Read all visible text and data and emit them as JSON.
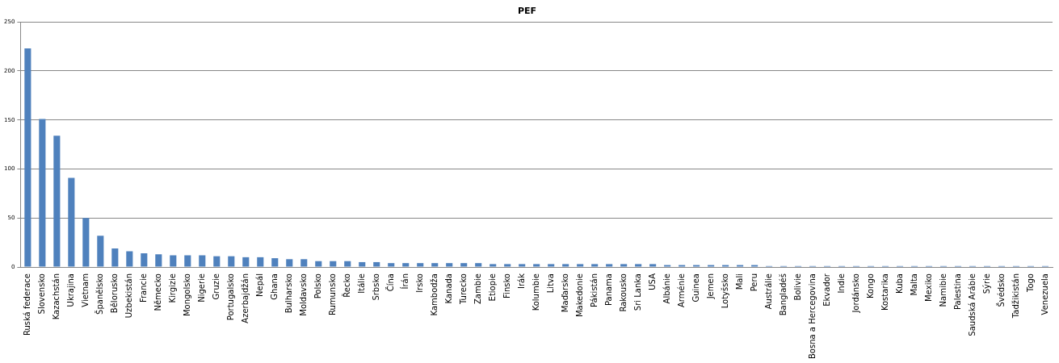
{
  "chart_data": {
    "type": "bar",
    "title": "PEF",
    "categories": [
      "Ruská federace",
      "Slovensko",
      "Kazachstán",
      "Ukrajina",
      "Vietnam",
      "Španělsko",
      "Bělorusko",
      "Uzbekistán",
      "Francie",
      "Německo",
      "Kirgizie",
      "Mongolsko",
      "Nigerie",
      "Gruzie",
      "Portugalsko",
      "Azerbajdžán",
      "Nepál",
      "Ghana",
      "Bulharsko",
      "Moldavsko",
      "Polsko",
      "Rumunsko",
      "Řecko",
      "Itálie",
      "Srbsko",
      "Čína",
      "Írán",
      "Irsko",
      "Kambodža",
      "Kanada",
      "Turecko",
      "Zambie",
      "Etiopie",
      "Finsko",
      "Irák",
      "Kolumbie",
      "Litva",
      "Maďarsko",
      "Makedonie",
      "Pákistán",
      "Panama",
      "Rakousko",
      "Sri Lanka",
      "USA",
      "Albánie",
      "Arménie",
      "Guinea",
      "Jemen",
      "Lotyšsko",
      "Mali",
      "Peru",
      "Austrálie",
      "Bangladéš",
      "Bolivie",
      "Bosna a Hercegovina",
      "Ekvador",
      "Indie",
      "Jordánsko",
      "Kongo",
      "Kostarika",
      "Kuba",
      "Malta",
      "Mexiko",
      "Namibie",
      "Palestina",
      "Saudská Arábie",
      "Sýrie",
      "Švédsko",
      "Tadžikistán",
      "Togo",
      "Venezuela"
    ],
    "values": [
      223,
      151,
      134,
      91,
      50,
      32,
      19,
      16,
      14,
      13,
      12,
      12,
      12,
      11,
      11,
      10,
      10,
      9,
      8,
      8,
      6,
      6,
      6,
      5,
      5,
      4,
      4,
      4,
      4,
      4,
      4,
      4,
      3,
      3,
      3,
      3,
      3,
      3,
      3,
      3,
      3,
      3,
      3,
      3,
      2,
      2,
      2,
      2,
      2,
      2,
      2,
      1,
      1,
      1,
      1,
      1,
      1,
      1,
      1,
      1,
      1,
      1,
      1,
      1,
      1,
      1,
      1,
      1,
      1,
      1,
      1
    ],
    "color": "#4f81bd",
    "ylim": [
      0,
      250
    ],
    "yticks": [
      0,
      50,
      100,
      150,
      200,
      250
    ],
    "grid": "y",
    "legend": false
  }
}
